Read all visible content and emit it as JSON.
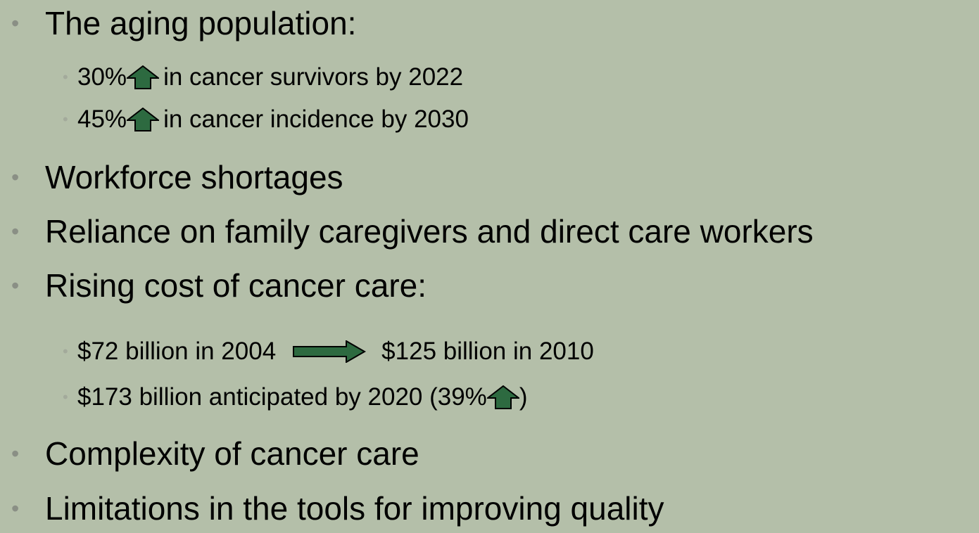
{
  "bullets": [
    {
      "text": "The aging population:",
      "sub": [
        {
          "parts": [
            "30%",
            "in cancer survivors by 2022"
          ]
        },
        {
          "parts": [
            "45%",
            "in cancer incidence by 2030"
          ]
        }
      ]
    },
    {
      "text": "Workforce shortages"
    },
    {
      "text": "Reliance on family caregivers and direct care workers"
    },
    {
      "text": "Rising cost of cancer care:",
      "sub": [
        {
          "parts": [
            "$72 billion in 2004",
            "$125 billion in 2010"
          ]
        },
        {
          "parts": [
            "$173 billion anticipated by 2020 (39%",
            ")"
          ]
        }
      ]
    },
    {
      "text": "Complexity of cancer care"
    },
    {
      "text": "Limitations in the tools for improving quality"
    }
  ]
}
